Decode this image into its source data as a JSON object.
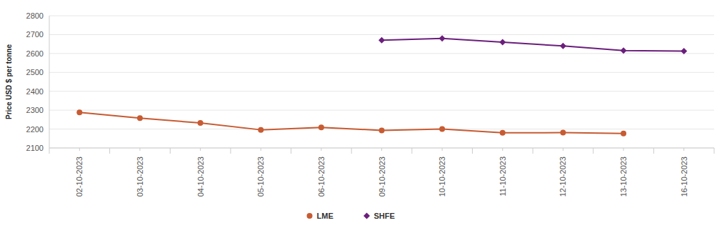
{
  "chart_data": {
    "type": "line",
    "y_label": "Price USD $ per tonne",
    "categories": [
      "02-10-2023",
      "03-10-2023",
      "04-10-2023",
      "05-10-2023",
      "06-10-2023",
      "09-10-2023",
      "10-10-2023",
      "11-10-2023",
      "12-10-2023",
      "13-10-2023",
      "16-10-2023"
    ],
    "series": [
      {
        "name": "LME",
        "color": "#c75b32",
        "marker": "circle",
        "values": [
          2288,
          2258,
          2232,
          2196,
          2209,
          2193,
          2200,
          2180,
          2181,
          2177,
          null
        ]
      },
      {
        "name": "SHFE",
        "color": "#6b1f7c",
        "marker": "diamond",
        "values": [
          null,
          null,
          null,
          null,
          null,
          2670,
          2680,
          2660,
          2640,
          2616,
          2613
        ]
      }
    ],
    "ylim": [
      2100,
      2800
    ],
    "yticks": [
      2100,
      2200,
      2300,
      2400,
      2500,
      2600,
      2700,
      2800
    ],
    "grid": true,
    "legend": "bottom"
  }
}
